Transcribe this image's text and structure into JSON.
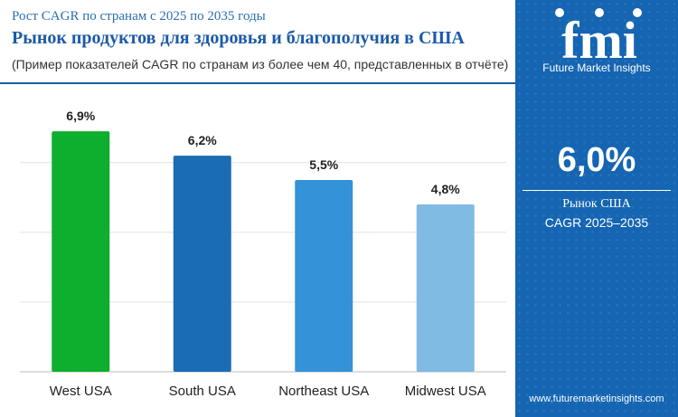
{
  "header": {
    "subtitle": "Рост CAGR по странам с 2025 по 2035 годы",
    "title": "Рынок продуктов для здоровья и благополучия в США",
    "note": "(Пример показателей CAGR по странам из более чем 40, представленных в отчёте)"
  },
  "chart_data": {
    "type": "bar",
    "categories": [
      "West USA",
      "South USA",
      "Northeast USA",
      "Midwest USA"
    ],
    "values": [
      6.9,
      6.2,
      5.5,
      4.8
    ],
    "data_labels": [
      "6,9%",
      "6,2%",
      "5,5%",
      "4,8%"
    ],
    "colors": [
      "#0eae2e",
      "#1a6db3",
      "#3392d8",
      "#80bbe3"
    ],
    "ylim": [
      0,
      8.2
    ],
    "gridlines": [
      2,
      4,
      6
    ],
    "grid": true,
    "legend": "none"
  },
  "panel": {
    "logo_text": "fmi",
    "logo_tagline": "Future Market Insights",
    "stat_value": "6,0%",
    "stat_label_line1": "Рынок США",
    "stat_label_line2": "CAGR 2025–2035",
    "website": "www.futuremarketinsights.com",
    "background_color": "#1565b2"
  }
}
